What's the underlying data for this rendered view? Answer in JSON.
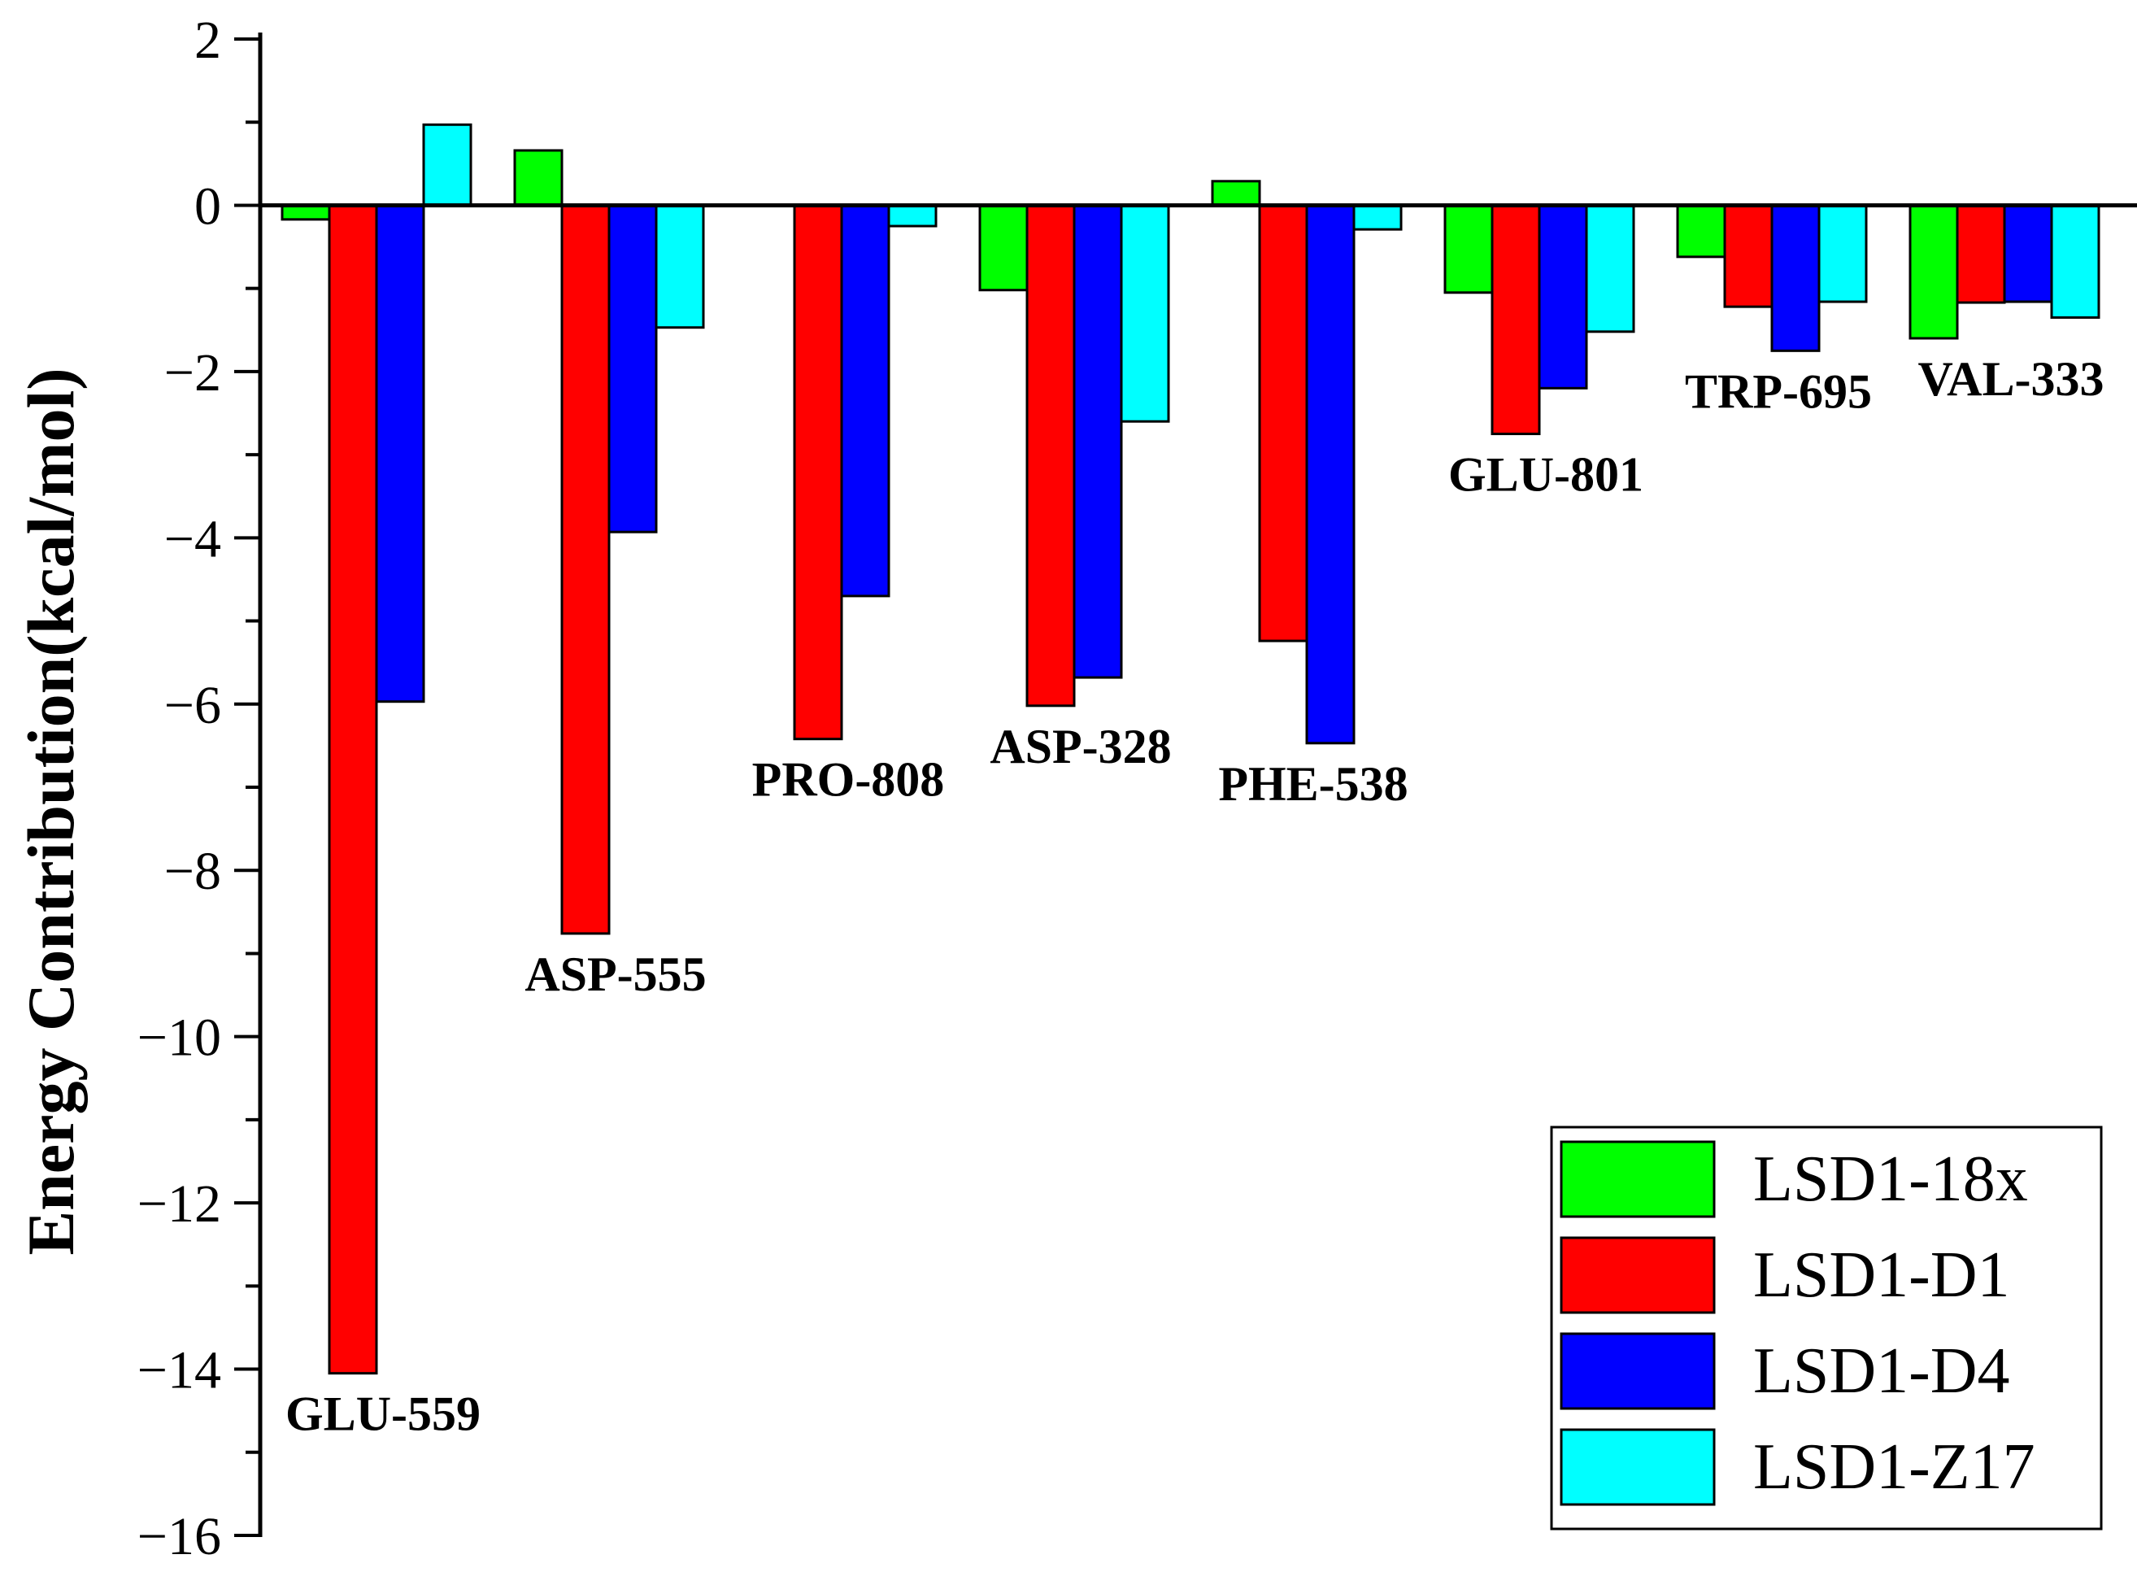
{
  "chart_data": {
    "type": "bar",
    "title": "",
    "xlabel": "",
    "ylabel": "Energy Contribution(kcal/mol)",
    "ylim": [
      -16,
      2
    ],
    "yticks": [
      2,
      0,
      -2,
      -4,
      -6,
      -8,
      -10,
      -12,
      -14,
      -16
    ],
    "ytick_labels": [
      "2",
      "0",
      "−2",
      "−4",
      "−6",
      "−8",
      "−10",
      "−12",
      "−14",
      "−16"
    ],
    "grid": false,
    "legend_position": "bottom-right",
    "categories": [
      "GLU-559",
      "ASP-555",
      "PRO-808",
      "ASP-328",
      "PHE-538",
      "GLU-801",
      "TRP-695",
      "VAL-333"
    ],
    "series": [
      {
        "name": "LSD1-18x",
        "color": "#00ff00",
        "values": [
          -0.17,
          0.66,
          0.0,
          -1.02,
          0.29,
          -1.05,
          -0.62,
          -1.6
        ]
      },
      {
        "name": "LSD1-D1",
        "color": "#ff0000",
        "values": [
          -14.05,
          -8.76,
          -6.42,
          -6.02,
          -5.24,
          -2.75,
          -1.22,
          -1.17
        ]
      },
      {
        "name": "LSD1-D4",
        "color": "#0000ff",
        "values": [
          -5.97,
          -3.93,
          -4.7,
          -5.68,
          -6.47,
          -2.2,
          -1.75,
          -1.16
        ]
      },
      {
        "name": "LSD1-Z17",
        "color": "#00ffff",
        "values": [
          0.97,
          -1.47,
          -0.25,
          -2.6,
          -0.29,
          -1.52,
          -1.16,
          -1.35
        ]
      }
    ]
  }
}
